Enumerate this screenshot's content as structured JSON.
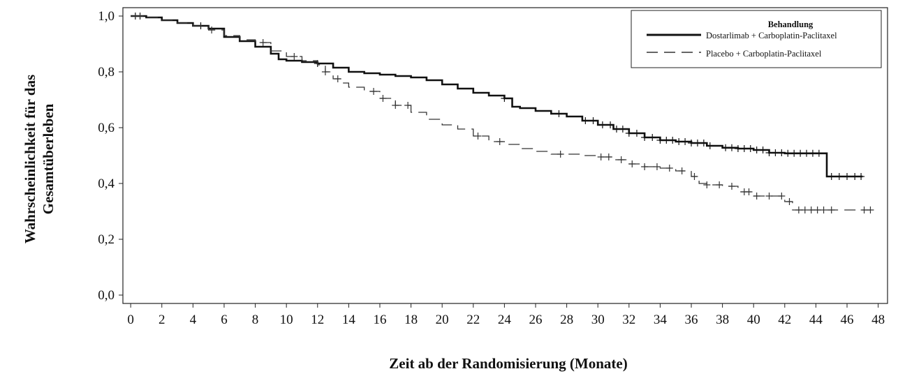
{
  "chart_data": {
    "type": "line",
    "subtype": "kaplan-meier",
    "title": "",
    "xlabel": "Zeit ab der Randomisierung (Monate)",
    "ylabel": [
      "Wahrscheinlichkeit für das",
      "Gesamtüberleben"
    ],
    "xlim": [
      -0.5,
      48.6
    ],
    "ylim": [
      -0.03,
      1.03
    ],
    "x_ticks": [
      0,
      2,
      4,
      6,
      8,
      10,
      12,
      14,
      16,
      18,
      20,
      22,
      24,
      26,
      28,
      30,
      32,
      34,
      36,
      38,
      40,
      42,
      44,
      46,
      48
    ],
    "x_tick_labels": [
      "0",
      "2",
      "4",
      "6",
      "8",
      "10",
      "12",
      "14",
      "16",
      "18",
      "20",
      "22",
      "24",
      "26",
      "28",
      "30",
      "32",
      "34",
      "36",
      "38",
      "40",
      "42",
      "44",
      "46",
      "48"
    ],
    "y_ticks": [
      0.0,
      0.2,
      0.4,
      0.6,
      0.8,
      1.0
    ],
    "y_tick_labels": [
      "0,0",
      "0,2",
      "0,4",
      "0,6",
      "0,8",
      "1,0"
    ],
    "grid": false,
    "legend": {
      "title": "Behandlung",
      "position": "top-right",
      "entries": [
        "Dostarlimab + Carboplatin-Paclitaxel",
        "Placebo + Carboplatin-Paclitaxel"
      ]
    },
    "series": [
      {
        "name": "Dostarlimab + Carboplatin-Paclitaxel",
        "style": "solid",
        "color": "#111111",
        "x": [
          0,
          1,
          2,
          3,
          4,
          5,
          6,
          7,
          8,
          9,
          9.5,
          10,
          11,
          12,
          13,
          14,
          15,
          16,
          17,
          18,
          19,
          20,
          21,
          22,
          23,
          24,
          24.5,
          25,
          26,
          27,
          28,
          29,
          30,
          31,
          32,
          33,
          34,
          35,
          36,
          37,
          38,
          39,
          40,
          41,
          42,
          43,
          44,
          44.6,
          44.7,
          45,
          46,
          47
        ],
        "y": [
          1.0,
          0.995,
          0.985,
          0.975,
          0.965,
          0.955,
          0.925,
          0.91,
          0.89,
          0.865,
          0.845,
          0.84,
          0.835,
          0.83,
          0.815,
          0.8,
          0.795,
          0.79,
          0.785,
          0.78,
          0.77,
          0.755,
          0.74,
          0.725,
          0.715,
          0.705,
          0.675,
          0.67,
          0.66,
          0.65,
          0.64,
          0.625,
          0.61,
          0.595,
          0.58,
          0.565,
          0.555,
          0.55,
          0.545,
          0.535,
          0.528,
          0.525,
          0.52,
          0.51,
          0.508,
          0.508,
          0.508,
          0.508,
          0.425,
          0.425,
          0.425,
          0.425
        ],
        "censor_x": [
          0.3,
          0.6,
          4.5,
          12,
          24,
          27.5,
          29.2,
          29.7,
          30.3,
          30.8,
          31.2,
          31.6,
          32,
          32.5,
          33,
          33.5,
          34,
          34.4,
          34.8,
          35.2,
          35.6,
          36,
          36.4,
          36.8,
          37.2,
          38.2,
          38.6,
          39,
          39.4,
          39.8,
          40.2,
          40.6,
          41,
          41.4,
          41.8,
          42.2,
          42.6,
          43,
          43.4,
          43.8,
          44.2,
          45,
          45.5,
          46,
          46.5,
          46.9
        ]
      },
      {
        "name": "Placebo + Carboplatin-Paclitaxel",
        "style": "dashed",
        "color": "#333333",
        "x": [
          0,
          1,
          2,
          3,
          4,
          5,
          6,
          7,
          8,
          9,
          10,
          11,
          12,
          12.5,
          13,
          13.5,
          14,
          15,
          16,
          17,
          18,
          19,
          20,
          21,
          22,
          23,
          24,
          25,
          26,
          27,
          28,
          29,
          30,
          31,
          32,
          33,
          34,
          35,
          36,
          36.5,
          37,
          38,
          39,
          40,
          41,
          42,
          42.5,
          43,
          44,
          45,
          46,
          47,
          47.5
        ],
        "y": [
          1.0,
          0.995,
          0.985,
          0.975,
          0.965,
          0.95,
          0.93,
          0.915,
          0.905,
          0.875,
          0.855,
          0.84,
          0.825,
          0.8,
          0.775,
          0.76,
          0.745,
          0.73,
          0.705,
          0.68,
          0.655,
          0.63,
          0.61,
          0.595,
          0.57,
          0.55,
          0.54,
          0.525,
          0.515,
          0.505,
          0.505,
          0.5,
          0.495,
          0.485,
          0.47,
          0.46,
          0.455,
          0.445,
          0.425,
          0.4,
          0.395,
          0.39,
          0.37,
          0.355,
          0.355,
          0.335,
          0.305,
          0.305,
          0.305,
          0.305,
          0.305,
          0.305,
          0.305
        ],
        "censor_x": [
          0.3,
          0.6,
          5.2,
          8.5,
          10.5,
          12.5,
          13.3,
          15.6,
          16.2,
          17,
          17.8,
          22.3,
          23.7,
          27.6,
          30.2,
          30.7,
          31.5,
          32.2,
          33,
          33.8,
          34.6,
          35.4,
          36.2,
          37,
          37.8,
          38.6,
          39.4,
          39.7,
          40.2,
          41,
          41.8,
          42.3,
          42.9,
          43.3,
          43.7,
          44.1,
          44.5,
          45,
          47.1,
          47.5
        ]
      }
    ]
  }
}
